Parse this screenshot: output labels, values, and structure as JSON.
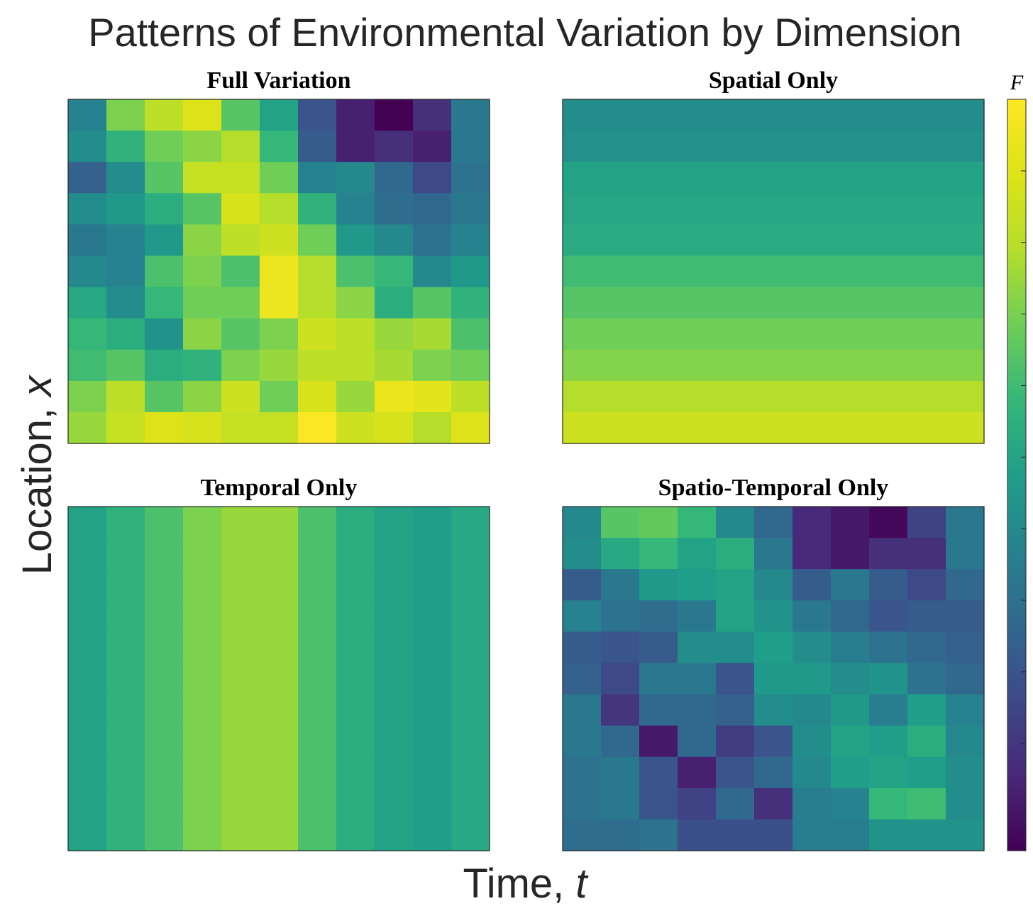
{
  "figure": {
    "title": "Patterns of Environmental Variation by Dimension",
    "xlabel": "Time, t",
    "xlabel_prefix": "Time, ",
    "xlabel_var": "t",
    "ylabel": "Location, x",
    "ylabel_prefix": "Location, ",
    "ylabel_var": "x"
  },
  "colorbar": {
    "label": "F",
    "colormap": "viridis",
    "range": [
      0,
      1
    ],
    "tick_count": 10
  },
  "chart_data": [
    {
      "type": "heatmap",
      "title": "Full Variation",
      "colormap": "viridis",
      "vlim": [
        0,
        1
      ],
      "rows": 11,
      "cols": 11,
      "values": [
        [
          0.4,
          0.72,
          0.82,
          0.9,
          0.66,
          0.52,
          0.24,
          0.08,
          0.0,
          0.12,
          0.36
        ],
        [
          0.44,
          0.58,
          0.7,
          0.74,
          0.8,
          0.6,
          0.26,
          0.08,
          0.12,
          0.08,
          0.36
        ],
        [
          0.28,
          0.44,
          0.66,
          0.84,
          0.84,
          0.7,
          0.4,
          0.42,
          0.3,
          0.2,
          0.34
        ],
        [
          0.44,
          0.48,
          0.56,
          0.66,
          0.88,
          0.8,
          0.58,
          0.4,
          0.32,
          0.3,
          0.36
        ],
        [
          0.36,
          0.4,
          0.48,
          0.74,
          0.82,
          0.86,
          0.7,
          0.48,
          0.42,
          0.34,
          0.4
        ],
        [
          0.42,
          0.4,
          0.64,
          0.72,
          0.64,
          0.95,
          0.8,
          0.64,
          0.6,
          0.42,
          0.48
        ],
        [
          0.54,
          0.44,
          0.6,
          0.7,
          0.7,
          0.95,
          0.8,
          0.74,
          0.56,
          0.66,
          0.58
        ],
        [
          0.6,
          0.56,
          0.46,
          0.74,
          0.66,
          0.72,
          0.86,
          0.82,
          0.76,
          0.78,
          0.64
        ],
        [
          0.62,
          0.66,
          0.56,
          0.58,
          0.72,
          0.76,
          0.82,
          0.82,
          0.78,
          0.72,
          0.7
        ],
        [
          0.72,
          0.82,
          0.66,
          0.74,
          0.86,
          0.7,
          0.88,
          0.76,
          0.94,
          0.92,
          0.82
        ],
        [
          0.76,
          0.84,
          0.9,
          0.88,
          0.84,
          0.84,
          1.0,
          0.86,
          0.88,
          0.8,
          0.9
        ]
      ]
    },
    {
      "type": "heatmap",
      "title": "Spatial Only",
      "colormap": "viridis",
      "vlim": [
        0,
        1
      ],
      "rows": 11,
      "cols": 11,
      "values": [
        [
          0.44,
          0.44,
          0.44,
          0.44,
          0.44,
          0.44,
          0.44,
          0.44,
          0.44,
          0.44,
          0.44
        ],
        [
          0.45,
          0.45,
          0.45,
          0.45,
          0.45,
          0.45,
          0.45,
          0.45,
          0.45,
          0.45,
          0.45
        ],
        [
          0.52,
          0.52,
          0.52,
          0.52,
          0.52,
          0.52,
          0.52,
          0.52,
          0.52,
          0.52,
          0.52
        ],
        [
          0.53,
          0.53,
          0.53,
          0.53,
          0.53,
          0.53,
          0.53,
          0.53,
          0.53,
          0.53,
          0.53
        ],
        [
          0.55,
          0.55,
          0.55,
          0.55,
          0.55,
          0.55,
          0.55,
          0.55,
          0.55,
          0.55,
          0.55
        ],
        [
          0.62,
          0.62,
          0.62,
          0.62,
          0.62,
          0.62,
          0.62,
          0.62,
          0.62,
          0.62,
          0.62
        ],
        [
          0.66,
          0.66,
          0.66,
          0.66,
          0.66,
          0.66,
          0.66,
          0.66,
          0.66,
          0.66,
          0.66
        ],
        [
          0.7,
          0.7,
          0.7,
          0.7,
          0.7,
          0.7,
          0.7,
          0.7,
          0.7,
          0.7,
          0.7
        ],
        [
          0.73,
          0.73,
          0.73,
          0.73,
          0.73,
          0.73,
          0.73,
          0.73,
          0.73,
          0.73,
          0.73
        ],
        [
          0.8,
          0.8,
          0.8,
          0.8,
          0.8,
          0.8,
          0.8,
          0.8,
          0.8,
          0.8,
          0.8
        ],
        [
          0.86,
          0.86,
          0.86,
          0.86,
          0.86,
          0.86,
          0.86,
          0.86,
          0.86,
          0.86,
          0.86
        ]
      ]
    },
    {
      "type": "heatmap",
      "title": "Temporal Only",
      "colormap": "viridis",
      "vlim": [
        0,
        1
      ],
      "rows": 11,
      "cols": 11,
      "values": [
        [
          0.52,
          0.58,
          0.64,
          0.72,
          0.76,
          0.76,
          0.64,
          0.56,
          0.52,
          0.5,
          0.54
        ],
        [
          0.52,
          0.58,
          0.64,
          0.72,
          0.76,
          0.76,
          0.64,
          0.56,
          0.52,
          0.5,
          0.54
        ],
        [
          0.52,
          0.58,
          0.64,
          0.72,
          0.76,
          0.76,
          0.64,
          0.56,
          0.52,
          0.5,
          0.54
        ],
        [
          0.52,
          0.58,
          0.64,
          0.72,
          0.76,
          0.76,
          0.64,
          0.56,
          0.52,
          0.5,
          0.54
        ],
        [
          0.52,
          0.58,
          0.64,
          0.72,
          0.76,
          0.76,
          0.64,
          0.56,
          0.52,
          0.5,
          0.54
        ],
        [
          0.52,
          0.58,
          0.64,
          0.72,
          0.76,
          0.76,
          0.64,
          0.56,
          0.52,
          0.5,
          0.54
        ],
        [
          0.52,
          0.58,
          0.64,
          0.72,
          0.76,
          0.76,
          0.64,
          0.56,
          0.52,
          0.5,
          0.54
        ],
        [
          0.52,
          0.58,
          0.64,
          0.72,
          0.76,
          0.76,
          0.64,
          0.56,
          0.52,
          0.5,
          0.54
        ],
        [
          0.52,
          0.58,
          0.64,
          0.72,
          0.76,
          0.76,
          0.64,
          0.56,
          0.52,
          0.5,
          0.54
        ],
        [
          0.52,
          0.58,
          0.64,
          0.72,
          0.76,
          0.76,
          0.64,
          0.56,
          0.52,
          0.5,
          0.54
        ],
        [
          0.52,
          0.58,
          0.64,
          0.72,
          0.76,
          0.76,
          0.64,
          0.56,
          0.52,
          0.5,
          0.54
        ]
      ]
    },
    {
      "type": "heatmap",
      "title": "Spatio-Temporal Only",
      "colormap": "viridis",
      "vlim": [
        0,
        1
      ],
      "rows": 11,
      "cols": 11,
      "values": [
        [
          0.42,
          0.66,
          0.68,
          0.6,
          0.42,
          0.3,
          0.1,
          0.06,
          0.02,
          0.18,
          0.36
        ],
        [
          0.44,
          0.54,
          0.6,
          0.52,
          0.56,
          0.36,
          0.1,
          0.06,
          0.12,
          0.12,
          0.36
        ],
        [
          0.26,
          0.36,
          0.48,
          0.5,
          0.52,
          0.42,
          0.26,
          0.36,
          0.26,
          0.2,
          0.3
        ],
        [
          0.4,
          0.34,
          0.32,
          0.36,
          0.52,
          0.46,
          0.36,
          0.3,
          0.24,
          0.26,
          0.26
        ],
        [
          0.26,
          0.24,
          0.26,
          0.44,
          0.44,
          0.5,
          0.44,
          0.38,
          0.34,
          0.3,
          0.28
        ],
        [
          0.28,
          0.2,
          0.36,
          0.36,
          0.24,
          0.48,
          0.48,
          0.44,
          0.46,
          0.34,
          0.3
        ],
        [
          0.36,
          0.14,
          0.3,
          0.3,
          0.28,
          0.44,
          0.42,
          0.48,
          0.38,
          0.5,
          0.4
        ],
        [
          0.36,
          0.3,
          0.06,
          0.3,
          0.16,
          0.24,
          0.44,
          0.52,
          0.5,
          0.56,
          0.42
        ],
        [
          0.34,
          0.36,
          0.24,
          0.08,
          0.24,
          0.3,
          0.42,
          0.5,
          0.52,
          0.5,
          0.44
        ],
        [
          0.34,
          0.36,
          0.24,
          0.18,
          0.3,
          0.12,
          0.38,
          0.4,
          0.6,
          0.62,
          0.44
        ],
        [
          0.32,
          0.32,
          0.34,
          0.22,
          0.22,
          0.22,
          0.38,
          0.38,
          0.46,
          0.46,
          0.46
        ]
      ]
    }
  ]
}
